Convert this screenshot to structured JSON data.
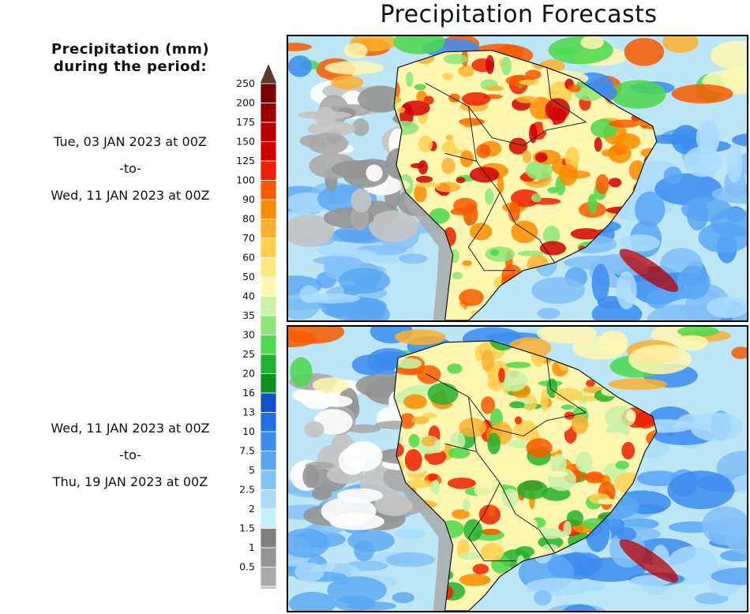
{
  "title": "Precipitation Forecasts",
  "legend": {
    "title_line1": "Precipitation (mm)",
    "title_line2": "during the period:",
    "levels": [
      "250",
      "200",
      "175",
      "150",
      "125",
      "100",
      "90",
      "80",
      "70",
      "60",
      "50",
      "40",
      "35",
      "30",
      "25",
      "20",
      "16",
      "13",
      "10",
      "7.5",
      "5",
      "2.5",
      "2",
      "1.5",
      "1",
      "0.5"
    ],
    "colors": [
      "#7a0000",
      "#9a0000",
      "#b80000",
      "#d00000",
      "#ec2000",
      "#f85a00",
      "#fa8c00",
      "#fdb030",
      "#ffd050",
      "#ffe880",
      "#fff7b0",
      "#c9f2a8",
      "#8ee67a",
      "#4dd84d",
      "#22b22e",
      "#0f8f20",
      "#1050c8",
      "#2070e0",
      "#3c8cf0",
      "#5aa6f4",
      "#82c0f8",
      "#aadcff",
      "#c7f0ff",
      "#808080",
      "#959595",
      "#aaaaaa",
      "#c4c4c4"
    ],
    "top_triangle_color": "#5a3a2a",
    "bottom_triangle_color": "#ffffff"
  },
  "panels": [
    {
      "period_start": "Tue, 03 JAN 2023 at 00Z",
      "period_sep": "-to-",
      "period_end": "Wed, 11 JAN 2023 at 00Z"
    },
    {
      "period_start": "Wed, 11 JAN 2023 at 00Z",
      "period_sep": "-to-",
      "period_end": "Thu, 19 JAN 2023 at 00Z"
    }
  ]
}
